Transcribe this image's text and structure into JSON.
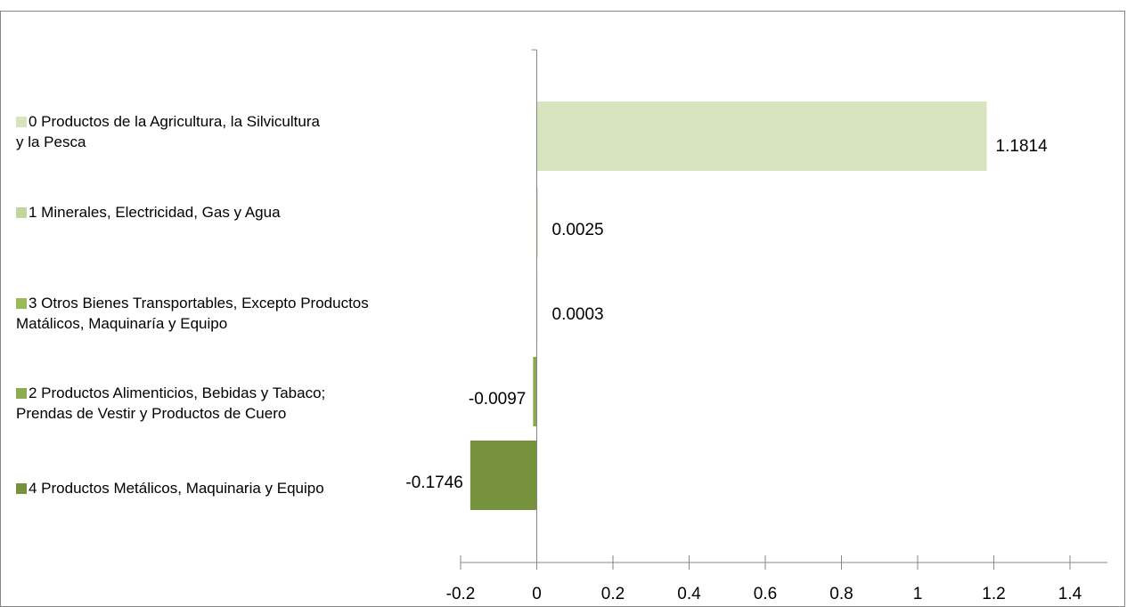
{
  "chart_data": {
    "type": "bar",
    "orientation": "horizontal",
    "title": "",
    "xlabel": "",
    "ylabel": "",
    "xlim": [
      -0.2,
      1.4
    ],
    "x_ticks": [
      "-0.2",
      "0",
      "0.2",
      "0.4",
      "0.6",
      "0.8",
      "1",
      "1.2",
      "1.4"
    ],
    "grid": false,
    "legend_position": "left",
    "series": [
      {
        "name": "0  Productos de la Agricultura, la Silvicultura y la Pesca",
        "value": 1.1814,
        "label": "1.1814",
        "color": "#d7e4bd"
      },
      {
        "name": "1 Minerales, Electricidad, Gas y Agua",
        "value": 0.0025,
        "label": "0.0025",
        "color": "#c3d69b"
      },
      {
        "name": "3  Otros Bienes Transportables, Excepto Productos Matálicos, Maquinaría y Equipo",
        "value": 0.0003,
        "label": "0.0003",
        "color": "#9bbb59"
      },
      {
        "name": "2  Productos Alimenticios, Bebidas y Tabaco; Prendas de  Vestir y Productos de Cuero",
        "value": -0.0097,
        "label": "-0.0097",
        "color": "#8aab4f"
      },
      {
        "name": "4  Productos Metálicos, Maquinaria y Equipo",
        "value": -0.1746,
        "label": "-0.1746",
        "color": "#76923c"
      }
    ]
  }
}
